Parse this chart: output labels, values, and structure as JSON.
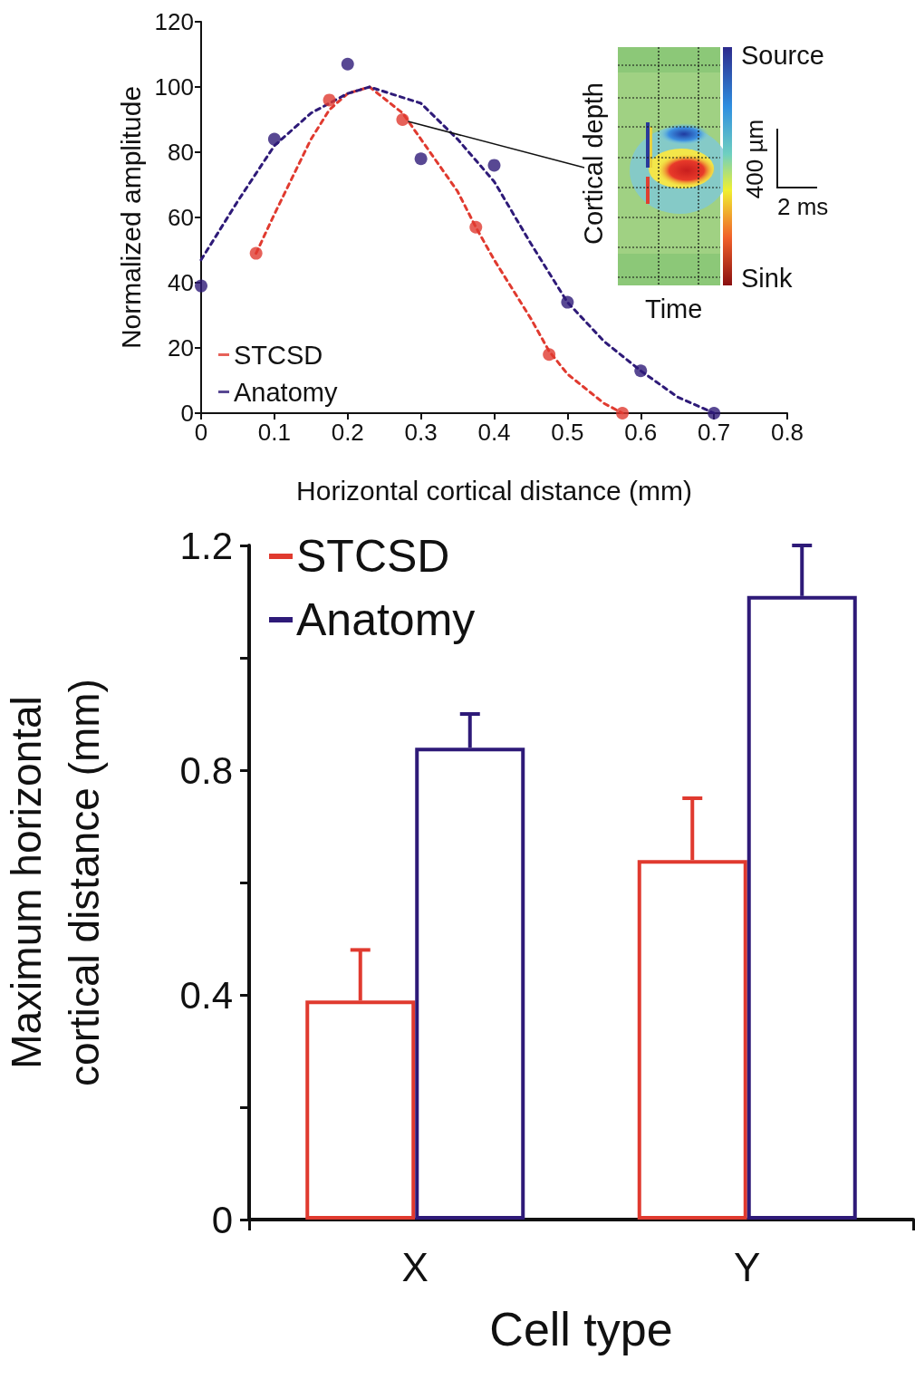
{
  "chart_data": [
    {
      "type": "scatter",
      "xlabel": "Horizontal cortical distance (mm)",
      "ylabel": "Normalized amplitude",
      "xlim": [
        0,
        0.8
      ],
      "xticks": [
        0,
        0.1,
        0.2,
        0.3,
        0.4,
        0.5,
        0.6,
        0.7,
        0.8
      ],
      "ylim": [
        0,
        120
      ],
      "yticks": [
        0,
        20,
        40,
        60,
        80,
        100,
        120
      ],
      "marker": "circle",
      "legend": "bottom left",
      "grid": false,
      "series": [
        {
          "name": "STCSD",
          "color": "#e03a2f",
          "x": [
            0.075,
            0.175,
            0.275,
            0.375,
            0.475,
            0.575
          ],
          "values": [
            49,
            96,
            90,
            57,
            18,
            0
          ]
        },
        {
          "name": "Anatomy",
          "color": "#2e1a78",
          "x": [
            0,
            0.1,
            0.2,
            0.3,
            0.4,
            0.5,
            0.6,
            0.7
          ],
          "values": [
            39,
            84,
            107,
            78,
            76,
            34,
            13,
            0
          ]
        },
        {
          "type": "line",
          "line_style": "dashed",
          "marker": "none",
          "color": "#e03a2f",
          "x": [
            0.075,
            0.1,
            0.15,
            0.175,
            0.2,
            0.23,
            0.275,
            0.3,
            0.35,
            0.375,
            0.4,
            0.45,
            0.475,
            0.5,
            0.55,
            0.575
          ],
          "values": [
            49,
            61,
            84,
            93,
            98,
            100,
            92,
            84,
            68,
            57,
            47,
            29,
            19,
            12,
            3,
            0
          ]
        },
        {
          "type": "line",
          "line_style": "dashed",
          "marker": "none",
          "color": "#2e1a78",
          "x": [
            0,
            0.05,
            0.1,
            0.15,
            0.2,
            0.23,
            0.3,
            0.35,
            0.4,
            0.45,
            0.5,
            0.55,
            0.6,
            0.65,
            0.7
          ],
          "values": [
            47,
            65,
            82,
            92,
            98,
            100,
            95,
            84,
            71,
            52,
            34,
            22,
            13,
            5,
            0
          ]
        }
      ],
      "annotations": [
        {
          "text": "Cortical depth",
          "x": 0.275,
          "y": 90
        },
        "Time",
        "Source",
        "Sink",
        "400 µm",
        "2 ms"
      ]
    },
    {
      "type": "bar",
      "xlabel": "Cell type",
      "ylabel": "Maximum horizontal cortical distance (mm)",
      "categories": [
        "X",
        "Y"
      ],
      "ylim": [
        0,
        1.2
      ],
      "yticks": [
        0,
        {
          "value": 0.2,
          "label": null
        },
        0.4,
        {
          "value": 0.6,
          "label": null
        },
        0.8,
        {
          "value": 1.0,
          "label": null
        },
        1.2
      ],
      "legend": "top left",
      "grid": false,
      "series": [
        {
          "name": "STCSD",
          "color": "#e03a2f",
          "values": [
            0.39,
            0.64
          ],
          "errors": [
            [
              0.39,
              0.48
            ],
            [
              0.64,
              0.75
            ]
          ]
        },
        {
          "name": "Anatomy",
          "color": "#2e1a78",
          "values": [
            0.84,
            1.11
          ],
          "errors": [
            [
              0.84,
              0.9
            ],
            [
              1.11,
              1.2
            ]
          ]
        }
      ]
    }
  ]
}
